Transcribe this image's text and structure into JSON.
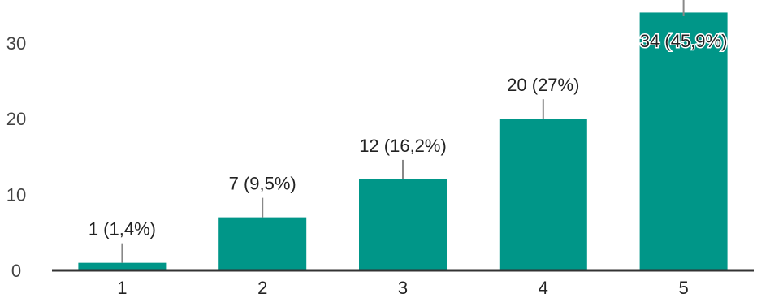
{
  "chart_data": {
    "type": "bar",
    "categories": [
      "1",
      "2",
      "3",
      "4",
      "5"
    ],
    "values": [
      1,
      7,
      12,
      20,
      34
    ],
    "data_labels": [
      "1 (1,4%)",
      "7 (9,5%)",
      "12 (16,2%)",
      "20 (27%)",
      "34 (45,9%)"
    ],
    "yticks": [
      "0",
      "10",
      "20",
      "30"
    ],
    "ylim": [
      0,
      34
    ],
    "grid": false,
    "bar_color": "#009688",
    "leader_color": "#888888",
    "axis_color": "#333333"
  }
}
